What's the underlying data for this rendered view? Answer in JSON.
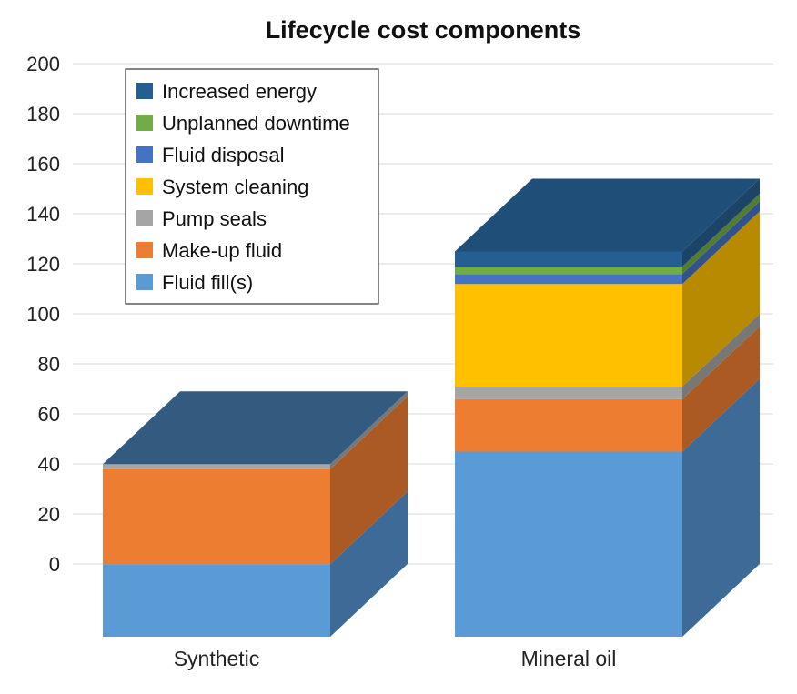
{
  "chart_data": {
    "type": "bar",
    "stacked": true,
    "three_d": true,
    "title": "Lifecycle cost components",
    "xlabel": "",
    "ylabel": "",
    "ylim": [
      0,
      200
    ],
    "yticks": [
      0,
      20,
      40,
      60,
      80,
      100,
      120,
      140,
      160,
      180,
      200
    ],
    "grid": true,
    "legend_position": "top-left",
    "categories": [
      "Synthetic",
      "Mineral oil"
    ],
    "series": [
      {
        "name": "Fluid fill(s)",
        "color": "#5B9BD5",
        "values": [
          29,
          74
        ]
      },
      {
        "name": "Make-up fluid",
        "color": "#ED7D31",
        "values": [
          38,
          21
        ]
      },
      {
        "name": "Pump seals",
        "color": "#A5A5A5",
        "values": [
          2,
          5
        ]
      },
      {
        "name": "System cleaning",
        "color": "#FFC000",
        "values": [
          0,
          41
        ]
      },
      {
        "name": "Fluid disposal",
        "color": "#4472C4",
        "values": [
          0,
          4
        ]
      },
      {
        "name": "Unplanned downtime",
        "color": "#70AD47",
        "values": [
          0,
          3
        ]
      },
      {
        "name": "Increased energy",
        "color": "#255E91",
        "values": [
          0,
          6
        ]
      }
    ],
    "legend_order": [
      "Increased energy",
      "Unplanned downtime",
      "Fluid disposal",
      "System cleaning",
      "Pump seals",
      "Make-up fluid",
      "Fluid fill(s)"
    ]
  }
}
